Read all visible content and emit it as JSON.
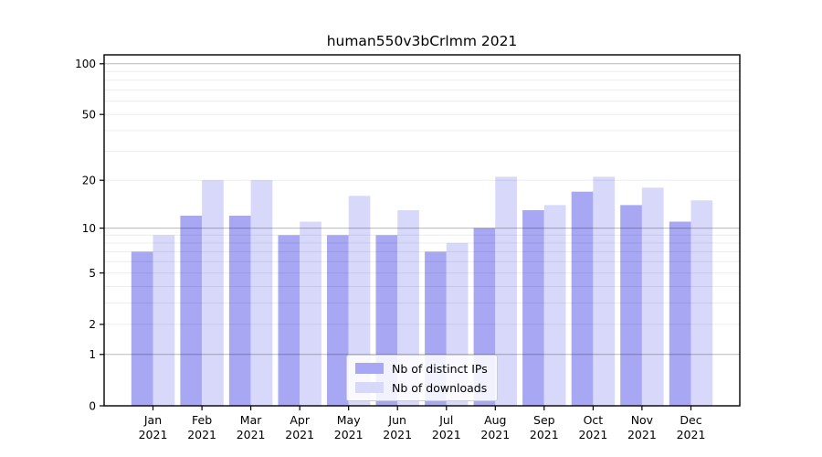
{
  "chart_data": {
    "type": "bar",
    "title": "human550v3bCrlmm 2021",
    "categories": [
      "Jan",
      "Feb",
      "Mar",
      "Apr",
      "May",
      "Jun",
      "Jul",
      "Aug",
      "Sep",
      "Oct",
      "Nov",
      "Dec"
    ],
    "x_year_label": "2021",
    "series": [
      {
        "name": "Nb of distinct IPs",
        "color": "#a7a7f3",
        "values": [
          7,
          12,
          12,
          9,
          9,
          9,
          7,
          10,
          13,
          17,
          14,
          11
        ]
      },
      {
        "name": "Nb of downloads",
        "color": "#d8d8fa",
        "values": [
          9,
          20,
          20,
          11,
          16,
          13,
          8,
          21,
          14,
          21,
          18,
          15
        ]
      }
    ],
    "scale": "log1p",
    "ylim": [
      0,
      113
    ],
    "y_ticks": [
      0,
      1,
      2,
      5,
      10,
      20,
      50,
      100
    ],
    "y_minor_grid": [
      2,
      3,
      4,
      5,
      6,
      7,
      8,
      9,
      20,
      30,
      40,
      50,
      60,
      70,
      80,
      90
    ],
    "y_major_grid": [
      1,
      10,
      100
    ],
    "grid": "horizontal",
    "legend_position": "bottom-center",
    "colors": {
      "axis": "#000000",
      "major_grid": "#b3b3b3",
      "minor_grid": "#e9e9e9"
    }
  }
}
